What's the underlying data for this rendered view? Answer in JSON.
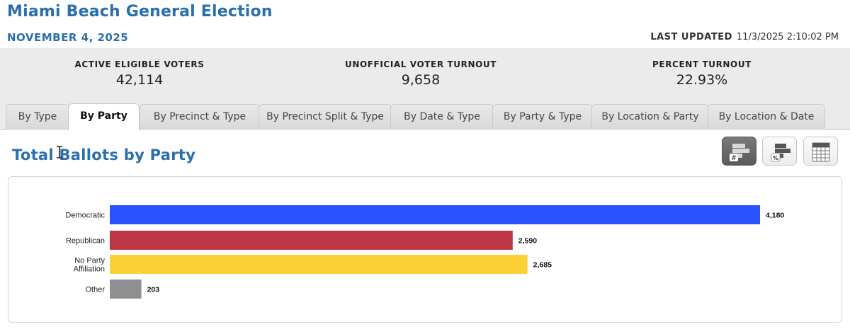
{
  "header": {
    "title": "Miami Beach General Election",
    "date": "NOVEMBER 4, 2025",
    "last_updated_label": "LAST UPDATED",
    "last_updated_value": "11/3/2025 2:10:02 PM"
  },
  "stats": [
    {
      "label": "ACTIVE ELIGIBLE VOTERS",
      "value": "42,114"
    },
    {
      "label": "UNOFFICIAL VOTER TURNOUT",
      "value": "9,658"
    },
    {
      "label": "PERCENT TURNOUT",
      "value": "22.93%"
    }
  ],
  "tabs": [
    {
      "label": "By Type",
      "active": false
    },
    {
      "label": "By Party",
      "active": true
    },
    {
      "label": "By Precinct & Type",
      "active": false
    },
    {
      "label": "By Precinct Split & Type",
      "active": false
    },
    {
      "label": "By Date & Type",
      "active": false
    },
    {
      "label": "By Party & Type",
      "active": false
    },
    {
      "label": "By Location & Party",
      "active": false
    },
    {
      "label": "By Location & Date",
      "active": false
    }
  ],
  "section": {
    "title": "Total Ballots by Party"
  },
  "view_buttons": [
    {
      "icon": "count-chart-icon",
      "active": true
    },
    {
      "icon": "percent-chart-icon",
      "active": false
    },
    {
      "icon": "table-view-icon",
      "active": false
    }
  ],
  "chart_data": {
    "type": "bar",
    "orientation": "horizontal",
    "title": "",
    "xlabel": "",
    "ylabel": "",
    "categories": [
      "Democratic",
      "Republican",
      "No Party Affiliation",
      "Other"
    ],
    "category_lines": [
      [
        "Democratic"
      ],
      [
        "Republican"
      ],
      [
        "No Party",
        "Affiliation"
      ],
      [
        "Other"
      ]
    ],
    "values": [
      4180,
      2590,
      2685,
      203
    ],
    "value_labels": [
      "4,180",
      "2,590",
      "2,685",
      "203"
    ],
    "colors": [
      "#2b52ff",
      "#be3645",
      "#fcd136",
      "#8f8f91"
    ],
    "xlim": [
      0,
      4180
    ],
    "grid": false
  }
}
